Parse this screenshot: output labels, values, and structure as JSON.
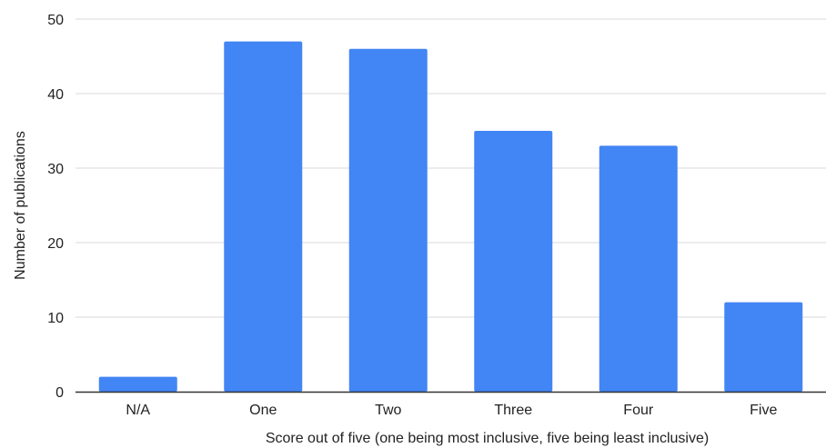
{
  "chart_data": {
    "type": "bar",
    "title": "",
    "xlabel": "Score out of five (one being most inclusive, five being least inclusive)",
    "ylabel": "Number of publications",
    "categories": [
      "N/A",
      "One",
      "Two",
      "Three",
      "Four",
      "Five"
    ],
    "values": [
      2,
      47,
      46,
      35,
      33,
      12
    ],
    "ylim": [
      0,
      50
    ],
    "yticks": [
      0,
      10,
      20,
      30,
      40,
      50
    ],
    "grid": true,
    "legend": "none",
    "bar_color": "#4285f4",
    "grid_color": "#d9d9d9",
    "axis_color": "#333333"
  }
}
